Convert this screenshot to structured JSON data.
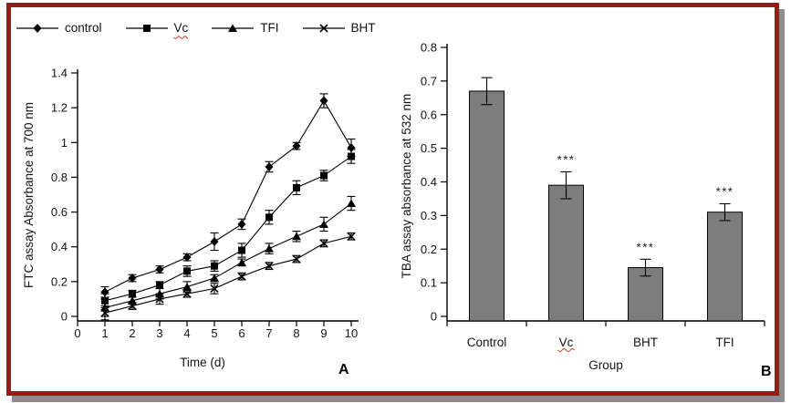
{
  "figure": {
    "border_color": "#9a1a1a",
    "shadow_color": "#8c8c8c",
    "spell_underline_color": "#d1341f",
    "line_color": "#000000",
    "text_color": "#141414"
  },
  "legend": {
    "items": [
      {
        "label": "control",
        "marker": "diamond",
        "misspelled": false
      },
      {
        "label": "Vc",
        "marker": "square",
        "misspelled": true
      },
      {
        "label": "TFI",
        "marker": "triangle",
        "misspelled": false
      },
      {
        "label": "BHT",
        "marker": "x",
        "misspelled": false
      }
    ]
  },
  "chart_data": [
    {
      "type": "line",
      "panel": "A",
      "title": "",
      "xlabel": "Time (d)",
      "ylabel": "FTC assay Absorbance at 700 nm",
      "x": [
        1,
        2,
        3,
        4,
        5,
        6,
        7,
        8,
        9,
        10
      ],
      "xticks": [
        0,
        1,
        2,
        3,
        4,
        5,
        6,
        7,
        8,
        9,
        10
      ],
      "xlim": [
        0,
        10
      ],
      "ylim": [
        0,
        1.4
      ],
      "ytick_step": 0.2,
      "grid": false,
      "legend_position": "top-outside",
      "series": [
        {
          "name": "control",
          "marker": "diamond",
          "values": [
            0.14,
            0.22,
            0.27,
            0.34,
            0.43,
            0.53,
            0.86,
            0.98,
            1.24,
            0.97
          ],
          "errors": [
            0.03,
            0.02,
            0.02,
            0.02,
            0.05,
            0.03,
            0.03,
            0.02,
            0.04,
            0.05
          ]
        },
        {
          "name": "Vc",
          "marker": "square",
          "values": [
            0.09,
            0.13,
            0.18,
            0.26,
            0.29,
            0.38,
            0.57,
            0.74,
            0.81,
            0.92
          ],
          "errors": [
            0.04,
            0.02,
            0.02,
            0.03,
            0.03,
            0.04,
            0.04,
            0.04,
            0.03,
            0.04
          ]
        },
        {
          "name": "TFI",
          "marker": "triangle",
          "values": [
            0.05,
            0.09,
            0.13,
            0.17,
            0.22,
            0.31,
            0.39,
            0.46,
            0.53,
            0.65
          ],
          "errors": [
            0.05,
            0.02,
            0.03,
            0.03,
            0.02,
            0.02,
            0.03,
            0.03,
            0.04,
            0.04
          ]
        },
        {
          "name": "BHT",
          "marker": "x",
          "values": [
            0.02,
            0.06,
            0.1,
            0.13,
            0.16,
            0.23,
            0.29,
            0.33,
            0.42,
            0.46
          ],
          "errors": [
            0.04,
            0.02,
            0.03,
            0.02,
            0.03,
            0.02,
            0.02,
            0.02,
            0.02,
            0.02
          ]
        }
      ]
    },
    {
      "type": "bar",
      "panel": "B",
      "title": "",
      "xlabel": "Group",
      "ylabel": "TBA assay absorbance at 532 nm",
      "categories": [
        "Control",
        "Vc",
        "BHT",
        "TFI"
      ],
      "values": [
        0.67,
        0.39,
        0.145,
        0.31
      ],
      "errors": [
        0.04,
        0.04,
        0.025,
        0.025
      ],
      "annotations": [
        "",
        "***",
        "***",
        "***"
      ],
      "misspelled": [
        false,
        true,
        false,
        false
      ],
      "ylim": [
        0,
        0.8
      ],
      "ytick_step": 0.1,
      "grid": false,
      "bar_color": "#7d7d7d",
      "bar_edge_color": "#000000"
    }
  ]
}
